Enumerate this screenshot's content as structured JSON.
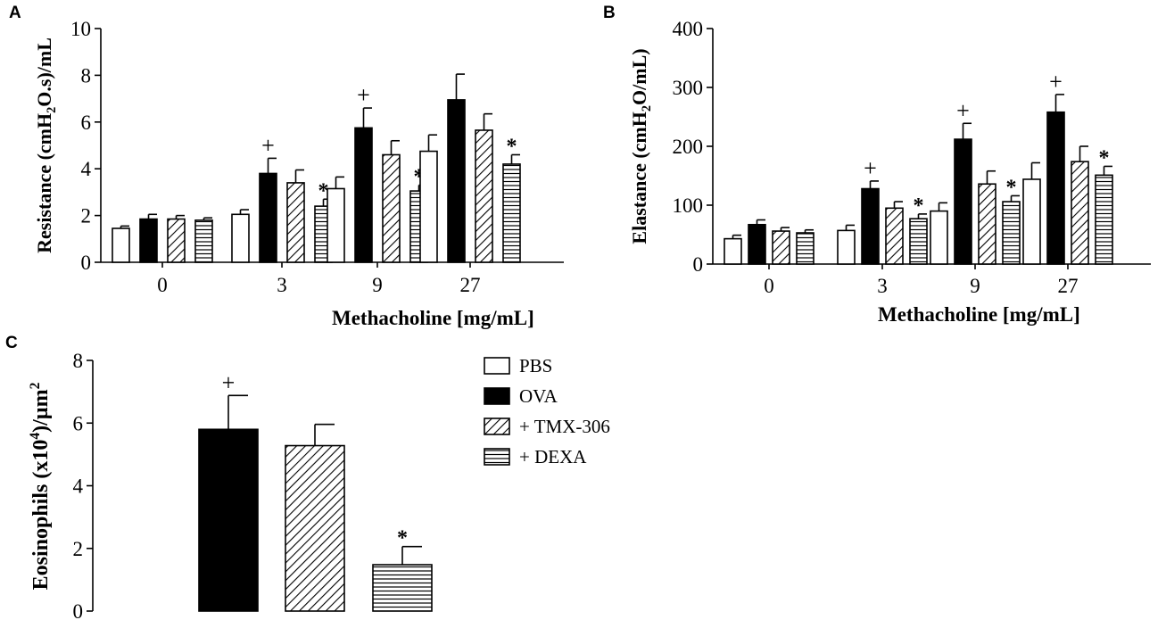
{
  "figure": {
    "legend": {
      "items": [
        {
          "label": "PBS",
          "pattern": "open"
        },
        {
          "label": "OVA",
          "pattern": "solid"
        },
        {
          "label": "+ TMX-306",
          "pattern": "diag"
        },
        {
          "label": "+ DEXA",
          "pattern": "horiz"
        }
      ]
    }
  },
  "chart_data": [
    {
      "panel": "A",
      "type": "bar",
      "ylabel_main": "Resistance (cmH",
      "ylabel_sub": "2",
      "ylabel_tail": "O.s)/mL",
      "xlabel": "Methacholine [mg/mL]",
      "ylim": [
        0,
        10
      ],
      "yticks": [
        "0",
        "2",
        "4",
        "6",
        "8",
        "10"
      ],
      "categories": [
        "0",
        "3",
        "9",
        "27"
      ],
      "series": [
        {
          "name": "PBS",
          "pattern": "open",
          "values": [
            1.45,
            2.05,
            3.15,
            4.75
          ],
          "errors": [
            0.1,
            0.2,
            0.5,
            0.7
          ]
        },
        {
          "name": "OVA",
          "pattern": "solid",
          "values": [
            1.85,
            3.8,
            5.75,
            6.95
          ],
          "errors": [
            0.2,
            0.65,
            0.85,
            1.1
          ]
        },
        {
          "name": "+ TMX-306",
          "pattern": "diag",
          "values": [
            1.85,
            3.4,
            4.6,
            5.65
          ],
          "errors": [
            0.15,
            0.55,
            0.6,
            0.7
          ]
        },
        {
          "name": "+ DEXA",
          "pattern": "horiz",
          "values": [
            1.8,
            2.4,
            3.05,
            4.2
          ],
          "errors": [
            0.1,
            0.3,
            0.25,
            0.4
          ]
        }
      ],
      "annotations": [
        {
          "category": "3",
          "series": "OVA",
          "text": "+"
        },
        {
          "category": "9",
          "series": "OVA",
          "text": "+"
        },
        {
          "category": "3",
          "series": "+ DEXA",
          "text": "*"
        },
        {
          "category": "9",
          "series": "+ DEXA",
          "text": "*"
        },
        {
          "category": "27",
          "series": "+ DEXA",
          "text": "*"
        }
      ]
    },
    {
      "panel": "B",
      "type": "bar",
      "ylabel_main": "Elastance (cmH",
      "ylabel_sub": "2",
      "ylabel_tail": "O/mL)",
      "xlabel": "Methacholine [mg/mL]",
      "ylim": [
        0,
        400
      ],
      "yticks": [
        "0",
        "100",
        "200",
        "300",
        "400"
      ],
      "categories": [
        "0",
        "3",
        "9",
        "27"
      ],
      "series": [
        {
          "name": "PBS",
          "pattern": "open",
          "values": [
            43,
            57,
            90,
            144
          ],
          "errors": [
            6,
            9,
            14,
            28
          ]
        },
        {
          "name": "OVA",
          "pattern": "solid",
          "values": [
            67,
            128,
            212,
            258
          ],
          "errors": [
            8,
            13,
            27,
            30
          ]
        },
        {
          "name": "+ TMX-306",
          "pattern": "diag",
          "values": [
            56,
            95,
            136,
            174
          ],
          "errors": [
            6,
            11,
            22,
            26
          ]
        },
        {
          "name": "+ DEXA",
          "pattern": "horiz",
          "values": [
            53,
            77,
            106,
            151
          ],
          "errors": [
            5,
            8,
            10,
            15
          ]
        }
      ],
      "annotations": [
        {
          "category": "3",
          "series": "OVA",
          "text": "+"
        },
        {
          "category": "9",
          "series": "OVA",
          "text": "+"
        },
        {
          "category": "27",
          "series": "OVA",
          "text": "+"
        },
        {
          "category": "3",
          "series": "+ DEXA",
          "text": "*"
        },
        {
          "category": "9",
          "series": "+ DEXA",
          "text": "*"
        },
        {
          "category": "27",
          "series": "+ DEXA",
          "text": "*"
        }
      ]
    },
    {
      "panel": "C",
      "type": "bar",
      "ylabel_main": "Eosinophils (x10",
      "ylabel_sup": "4",
      "ylabel_tail": ")/µm",
      "ylabel_sup2": "2",
      "xlabel": "",
      "ylim": [
        0,
        8
      ],
      "yticks": [
        "0",
        "2",
        "4",
        "6",
        "8"
      ],
      "categories": [
        "PBS",
        "OVA",
        "+ TMX-306",
        "+ DEXA"
      ],
      "series": [
        {
          "name": "Eosinophils",
          "patterns": [
            "open",
            "solid",
            "diag",
            "horiz"
          ],
          "values": [
            0,
            5.8,
            5.28,
            1.48
          ],
          "errors": [
            0,
            1.08,
            0.68,
            0.58
          ]
        }
      ],
      "annotations": [
        {
          "category": "OVA",
          "text": "+"
        },
        {
          "category": "+ DEXA",
          "text": "*"
        }
      ]
    }
  ]
}
